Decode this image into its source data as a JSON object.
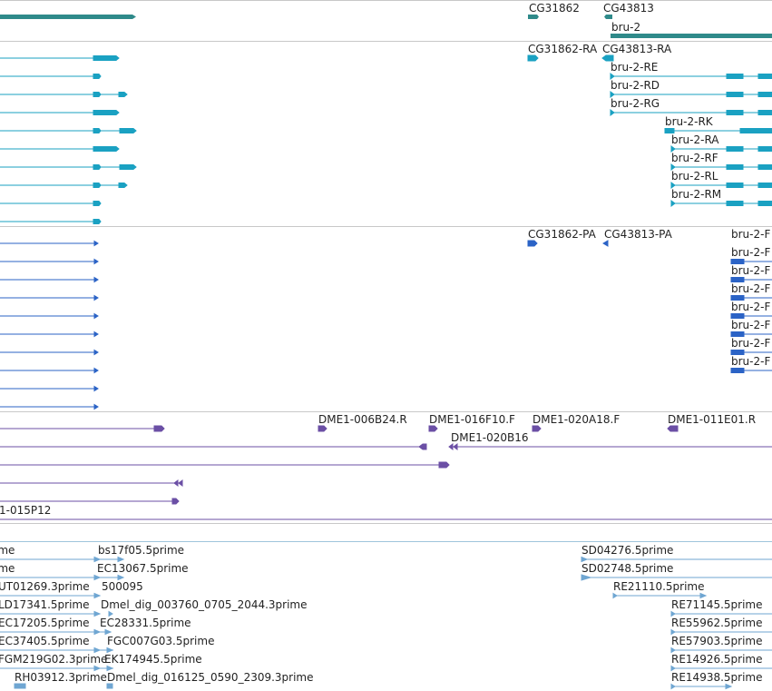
{
  "colors": {
    "gene": "#2f8a8a",
    "transcript": "#1aa1c2",
    "protein": "#2b63c6",
    "clone": "#6b4fa5",
    "est": "#6fa6d2"
  },
  "genes": [
    "CG31862",
    "CG43813",
    "bru-2"
  ],
  "transcripts": [
    "CG31862-RA",
    "CG43813-RA",
    "bru-2-RE",
    "bru-2-RD",
    "bru-2-RG",
    "bru-2-RK",
    "bru-2-RA",
    "bru-2-RF",
    "bru-2-RL",
    "bru-2-RM"
  ],
  "proteins": [
    "CG31862-PA",
    "CG43813-PA",
    "bru-2-F",
    "bru-2-F",
    "bru-2-F",
    "bru-2-F",
    "bru-2-F",
    "bru-2-F",
    "bru-2-F",
    "bru-2-F"
  ],
  "clones": [
    "DME1-006B24.R",
    "DME1-016F10.F",
    "DME1-020A18.F",
    "DME1-011E01.R",
    "DME1-020B16",
    "1-015P12"
  ],
  "ests": {
    "col1": [
      "ime",
      "ime",
      "UT01269.3prime",
      "LD17341.5prime",
      "EC17205.5prime",
      "EC37405.5prime",
      "FGM219G02.3prime",
      "RH03912.3prime"
    ],
    "col2": [
      "bs17f05.5prime",
      "EC13067.5prime",
      "500095",
      "Dmel_dig_003760_0705_2044.3prime",
      "EC28331.5prime",
      "FGC007G03.5prime",
      "EK174945.5prime",
      "Dmel_dig_016125_0590_2309.3prime"
    ],
    "col3": [
      "SD04276.5prime",
      "SD02748.5prime",
      "RE21110.5prime"
    ],
    "col4": [
      "RE71145.5prime",
      "RE55962.5prime",
      "RE57903.5prime",
      "RE14926.5prime",
      "RE14938.5prime"
    ]
  }
}
